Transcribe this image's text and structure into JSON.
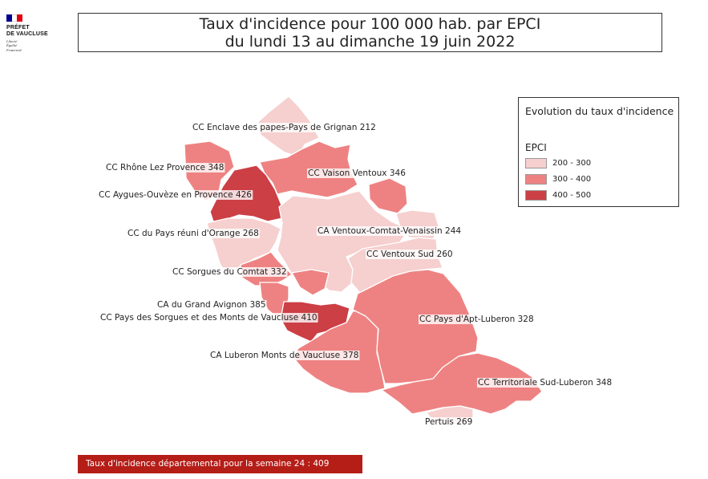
{
  "logo": {
    "line1": "PRÉFET",
    "line2": "DE VAUCLUSE",
    "motto": [
      "Liberté",
      "Égalité",
      "Fraternité"
    ],
    "flag_colors": [
      "#000091",
      "#ffffff",
      "#e1000f"
    ]
  },
  "title": {
    "line1": "Taux d'incidence pour 100 000 hab. par EPCI",
    "line2": "du lundi 13 au dimanche 19 juin 2022"
  },
  "legend": {
    "title": "Evolution du taux d'incidence",
    "subtitle": "EPCI",
    "classes": [
      {
        "label": "200 - 300",
        "color": "#f6cfcf"
      },
      {
        "label": "300 - 400",
        "color": "#ee8282"
      },
      {
        "label": "400 - 500",
        "color": "#cc3f45"
      }
    ]
  },
  "epci": [
    {
      "name": "CC Enclave des papes-Pays de Grignan",
      "value": 212
    },
    {
      "name": "CC Rhône Lez Provence",
      "value": 348
    },
    {
      "name": "CC Vaison Ventoux",
      "value": 346
    },
    {
      "name": "CC Aygues-Ouvèze en Provence",
      "value": 426
    },
    {
      "name": "CC du Pays réuni d'Orange",
      "value": 268
    },
    {
      "name": "CA Ventoux-Comtat-Venaissin",
      "value": 244
    },
    {
      "name": "CC Ventoux Sud",
      "value": 260
    },
    {
      "name": "CC Sorgues du Comtat",
      "value": 332
    },
    {
      "name": "CA du Grand Avignon",
      "value": 385
    },
    {
      "name": "CC Pays des Sorgues et des Monts de Vaucluse",
      "value": 410
    },
    {
      "name": "CC Pays d'Apt-Luberon",
      "value": 328
    },
    {
      "name": "CA Luberon Monts de Vaucluse",
      "value": 378
    },
    {
      "name": "CC Territoriale Sud-Luberon",
      "value": 348
    },
    {
      "name": "Pertuis",
      "value": 269
    }
  ],
  "footer": {
    "text": "Taux d'incidence départemental pour la semaine 24 : 409"
  }
}
